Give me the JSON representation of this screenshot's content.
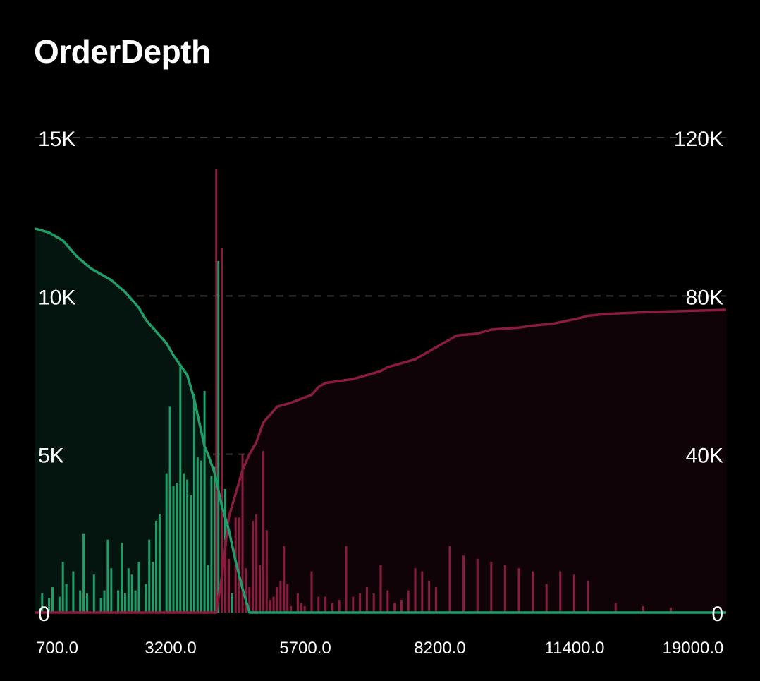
{
  "title": "OrderDepth",
  "colors": {
    "bid": "#1f9e6a",
    "bid_fill": "#04150f",
    "ask": "#8a1c3f",
    "ask_fill": "#100308",
    "grid": "#3a3a3a",
    "text": "#ffffff"
  },
  "chart_data": {
    "type": "area",
    "grid": true,
    "x_tick_labels": [
      "700.0",
      "3200.0",
      "5700.0",
      "8200.0",
      "11400.0",
      "19000.0"
    ],
    "left_axis": {
      "ticks": [
        0,
        5000,
        10000,
        15000
      ],
      "tick_labels": [
        "0",
        "5K",
        "10K",
        "15K"
      ],
      "ylim": [
        0,
        15000
      ]
    },
    "right_axis": {
      "ticks": [
        0,
        40000,
        80000,
        120000
      ],
      "tick_labels": [
        "0",
        "40K",
        "80K",
        "120K"
      ],
      "ylim": [
        0,
        120000
      ]
    },
    "cumulative_bids": {
      "x": [
        0.0,
        0.02,
        0.04,
        0.05,
        0.06,
        0.08,
        0.09,
        0.11,
        0.13,
        0.14,
        0.15,
        0.16,
        0.17,
        0.19,
        0.2,
        0.22,
        0.23,
        0.24,
        0.245,
        0.25,
        0.26,
        0.265,
        0.27,
        0.28,
        0.29,
        0.3,
        0.305,
        0.31,
        1.0
      ],
      "y": [
        97000,
        96000,
        94000,
        92000,
        90000,
        87000,
        86000,
        84000,
        81000,
        79000,
        77000,
        74000,
        72000,
        68000,
        65000,
        60000,
        54000,
        46000,
        42000,
        40000,
        35000,
        31000,
        27000,
        21000,
        13000,
        6000,
        3000,
        0,
        0
      ]
    },
    "cumulative_asks": {
      "x": [
        0.0,
        0.262,
        0.27,
        0.28,
        0.29,
        0.3,
        0.31,
        0.32,
        0.33,
        0.35,
        0.37,
        0.4,
        0.41,
        0.42,
        0.46,
        0.5,
        0.51,
        0.53,
        0.55,
        0.57,
        0.58,
        0.6,
        0.61,
        0.64,
        0.66,
        0.7,
        0.72,
        0.75,
        0.79,
        0.8,
        0.83,
        0.9,
        1.0
      ],
      "y": [
        0,
        0,
        9000,
        24000,
        30000,
        36000,
        40000,
        43000,
        48000,
        52000,
        53000,
        55000,
        57000,
        58000,
        59000,
        61000,
        62000,
        63000,
        64000,
        66000,
        67000,
        69000,
        70000,
        70500,
        71500,
        72000,
        72500,
        73000,
        74500,
        75000,
        75500,
        76000,
        76500
      ]
    },
    "bid_bars": {
      "x": [
        0.01,
        0.02,
        0.025,
        0.035,
        0.04,
        0.045,
        0.055,
        0.065,
        0.07,
        0.075,
        0.085,
        0.095,
        0.1,
        0.105,
        0.11,
        0.12,
        0.125,
        0.13,
        0.135,
        0.14,
        0.145,
        0.15,
        0.16,
        0.165,
        0.17,
        0.175,
        0.18,
        0.19,
        0.195,
        0.2,
        0.205,
        0.21,
        0.215,
        0.22,
        0.225,
        0.23,
        0.235,
        0.24,
        0.245,
        0.25,
        0.255,
        0.26,
        0.265,
        0.27,
        0.275,
        0.28,
        0.285
      ],
      "y": [
        600,
        450,
        800,
        500,
        1600,
        900,
        1300,
        700,
        2500,
        600,
        1200,
        450,
        700,
        2300,
        1400,
        700,
        2200,
        600,
        1400,
        1200,
        700,
        1600,
        900,
        2300,
        1600,
        2900,
        3100,
        4400,
        6500,
        4000,
        4100,
        7800,
        4400,
        4200,
        3700,
        6900,
        4900,
        4800,
        7000,
        1500,
        4300,
        4600,
        11100,
        3800,
        3900,
        1600,
        600
      ]
    },
    "ask_bars": {
      "x": [
        0.262,
        0.27,
        0.275,
        0.28,
        0.29,
        0.295,
        0.3,
        0.305,
        0.31,
        0.315,
        0.32,
        0.325,
        0.33,
        0.335,
        0.34,
        0.345,
        0.35,
        0.355,
        0.36,
        0.365,
        0.37,
        0.38,
        0.385,
        0.39,
        0.4,
        0.41,
        0.42,
        0.43,
        0.44,
        0.45,
        0.46,
        0.47,
        0.48,
        0.49,
        0.5,
        0.51,
        0.52,
        0.53,
        0.54,
        0.55,
        0.56,
        0.57,
        0.58,
        0.6,
        0.62,
        0.64,
        0.66,
        0.68,
        0.7,
        0.72,
        0.74,
        0.76,
        0.78,
        0.8,
        0.84,
        0.88,
        0.92
      ],
      "y": [
        14000,
        11500,
        2300,
        1700,
        3000,
        3000,
        5000,
        1400,
        800,
        2900,
        3100,
        1500,
        5100,
        2600,
        400,
        500,
        800,
        1000,
        2100,
        900,
        200,
        600,
        300,
        200,
        1300,
        500,
        500,
        300,
        400,
        2100,
        500,
        600,
        800,
        600,
        1500,
        700,
        300,
        400,
        700,
        1400,
        1300,
        1000,
        800,
        2100,
        1800,
        1700,
        1600,
        1500,
        1400,
        1300,
        900,
        1300,
        1200,
        1000,
        300,
        200,
        150
      ]
    }
  }
}
